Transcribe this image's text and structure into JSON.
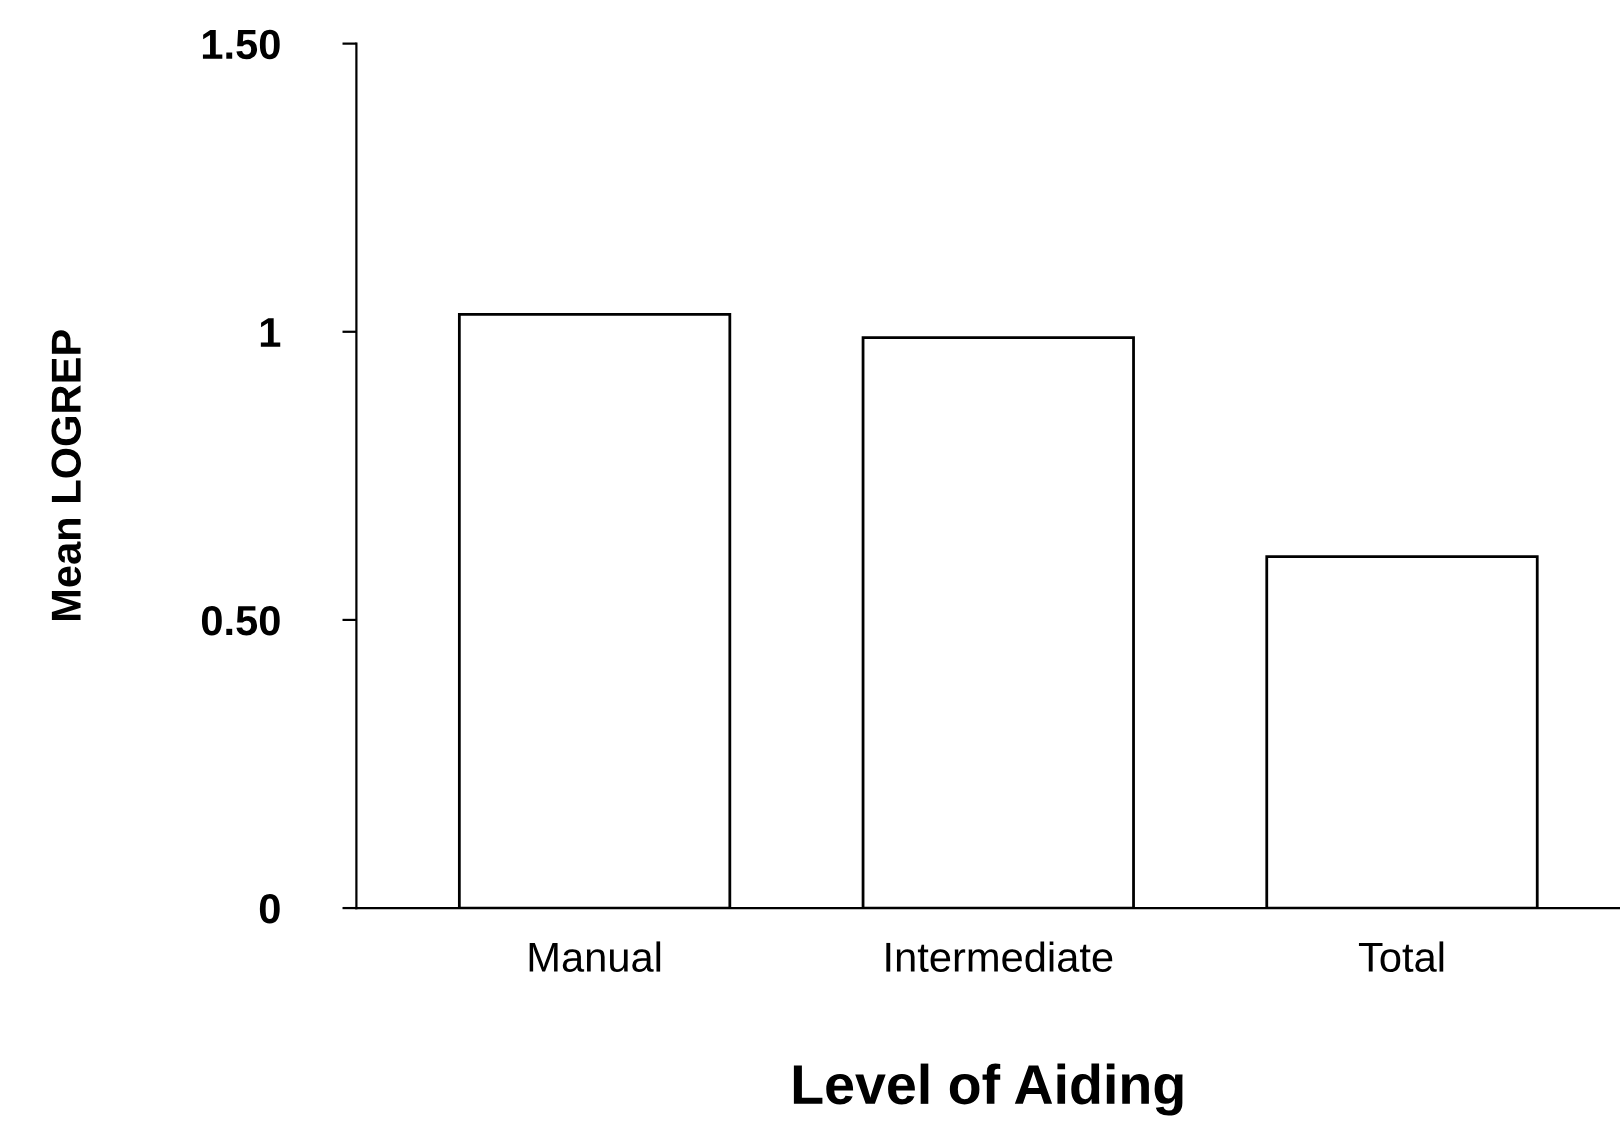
{
  "chart_data": {
    "type": "bar",
    "xlabel": "Level of Aiding",
    "ylabel": "Mean LOGREP",
    "categories": [
      "Manual",
      "Intermediate",
      "Total"
    ],
    "values": [
      1.03,
      0.99,
      0.61
    ],
    "color": "#ffffff",
    "ylim": [
      0,
      1.5
    ],
    "yticks": [
      0,
      {
        "value": 0.5,
        "label": "0.50"
      },
      1,
      {
        "value": 1.5,
        "label": "1.50"
      }
    ],
    "grid": false
  }
}
